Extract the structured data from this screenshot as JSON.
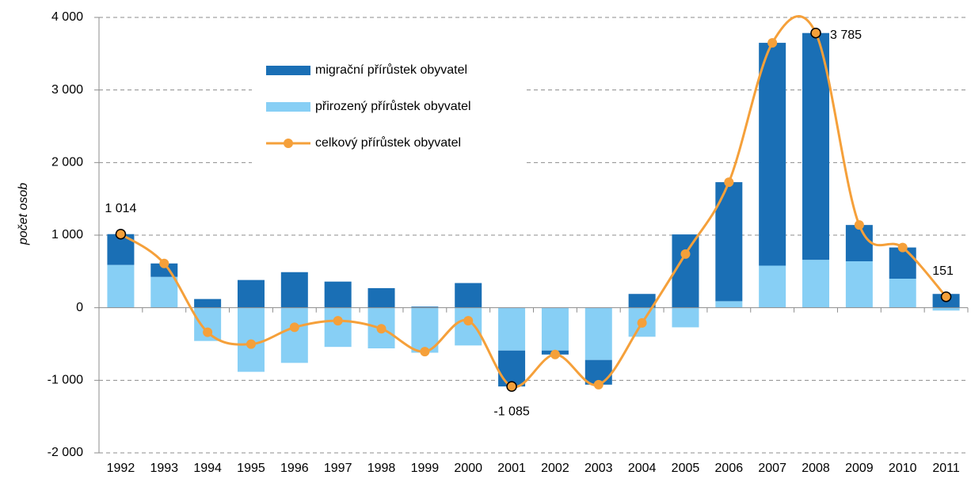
{
  "chart_data": {
    "type": "bar",
    "y_label": "počet osob",
    "categories": [
      "1992",
      "1993",
      "1994",
      "1995",
      "1996",
      "1997",
      "1998",
      "1999",
      "2000",
      "2001",
      "2002",
      "2003",
      "2004",
      "2005",
      "2006",
      "2007",
      "2008",
      "2009",
      "2010",
      "2011"
    ],
    "series": [
      {
        "name": "migrační přírůstek obyvatel",
        "color": "#1a6fb5",
        "values": [
          424,
          185,
          120,
          382,
          490,
          360,
          270,
          15,
          340,
          -495,
          -55,
          -340,
          190,
          1010,
          1640,
          3070,
          3125,
          500,
          430,
          190
        ]
      },
      {
        "name": "přirozený přírůstek obyvatel",
        "color": "#87cff5",
        "values": [
          590,
          425,
          -458,
          -883,
          -760,
          -540,
          -560,
          -620,
          -520,
          -590,
          -590,
          -720,
          -400,
          -270,
          90,
          580,
          660,
          640,
          400,
          -39
        ]
      },
      {
        "name": "celkový přírůstek obyvatel",
        "color": "#f5a03a",
        "type": "line",
        "values": [
          1014,
          610,
          -338,
          -501,
          -270,
          -180,
          -290,
          -605,
          -180,
          -1085,
          -645,
          -1060,
          -210,
          740,
          1730,
          3650,
          3785,
          1140,
          830,
          151
        ],
        "value_labels": [
          "1 014",
          null,
          null,
          null,
          null,
          null,
          null,
          null,
          null,
          "-1 085",
          null,
          null,
          null,
          null,
          null,
          null,
          "3 785",
          null,
          null,
          "151"
        ]
      }
    ],
    "ylim": [
      -2000,
      4000
    ],
    "yticks": [
      {
        "value": -2000,
        "label": "-2 000"
      },
      {
        "value": -1000,
        "label": "-1 000"
      },
      0,
      {
        "value": 1000,
        "label": "1 000"
      },
      {
        "value": 2000,
        "label": "2 000"
      },
      {
        "value": 3000,
        "label": "3 000"
      },
      {
        "value": 4000,
        "label": "4 000"
      }
    ],
    "grid": true
  }
}
